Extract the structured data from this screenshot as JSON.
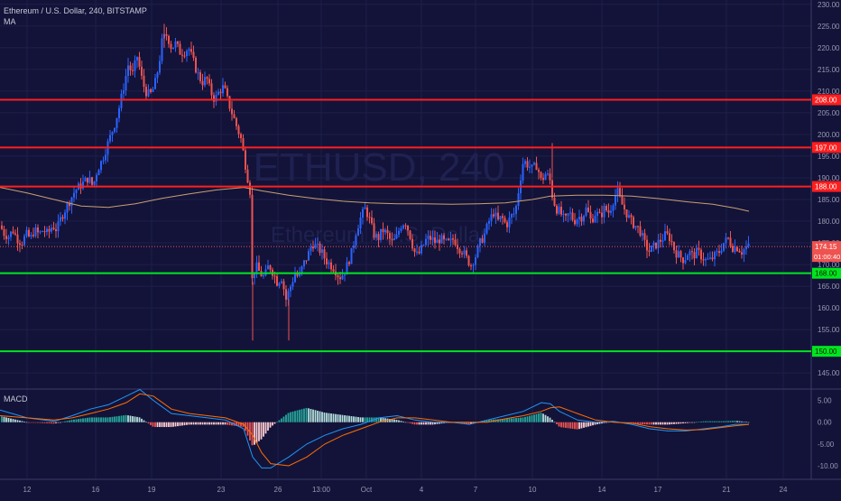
{
  "header": {
    "symbol_title": "Ethereum / U.S. Dollar, 240, BITSTAMP",
    "indicator_ma": "MA",
    "watermark_symbol": "ETHUSD, 240",
    "watermark_name": "Ethereum / U.S. Dollar"
  },
  "colors": {
    "background": "#131339",
    "up_candle": "#2962ff",
    "down_candle": "#ef5350",
    "resistance": "#ff1e1e",
    "support": "#00e61e",
    "ma_line": "#c8a070",
    "macd_line": "#2196f3",
    "signal_line": "#ff6d00",
    "hist_pos": "#26a69a",
    "hist_neg": "#ef5350"
  },
  "chart_data": [
    {
      "type": "candlestick",
      "title": "Ethereum / U.S. Dollar, 240, BITSTAMP",
      "x_tick_labels": [
        "12",
        "16",
        "19",
        "23",
        "26",
        "13:00",
        "Oct",
        "4",
        "7",
        "10",
        "14",
        "17",
        "21",
        "24"
      ],
      "y_tick_labels": [
        "145.00",
        "150.00",
        "155.00",
        "160.00",
        "165.00",
        "170.00",
        "175.00",
        "180.00",
        "185.00",
        "190.00",
        "195.00",
        "200.00",
        "205.00",
        "210.00",
        "215.00",
        "220.00",
        "225.00",
        "230.00"
      ],
      "ylim": [
        141.5,
        231
      ],
      "last_price": 174.15,
      "last_price_label": "174.15",
      "countdown_label": "01:00:40",
      "horizontal_levels": [
        {
          "value": 208.0,
          "label": "208.00",
          "kind": "resistance"
        },
        {
          "value": 197.0,
          "label": "197.00",
          "kind": "resistance"
        },
        {
          "value": 188.0,
          "label": "188.00",
          "kind": "resistance"
        },
        {
          "value": 168.0,
          "label": "168.00",
          "kind": "support"
        },
        {
          "value": 150.0,
          "label": "150.00",
          "kind": "support"
        }
      ],
      "close_path": [
        [
          0,
          179
        ],
        [
          5,
          177
        ],
        [
          10,
          176.5
        ],
        [
          14,
          178
        ],
        [
          19,
          176
        ],
        [
          24,
          175
        ],
        [
          29,
          177
        ],
        [
          34,
          176
        ],
        [
          38,
          178
        ],
        [
          43,
          177
        ],
        [
          48,
          178
        ],
        [
          53,
          177
        ],
        [
          58,
          179
        ],
        [
          63,
          178
        ],
        [
          68,
          181
        ],
        [
          73,
          183
        ],
        [
          78,
          185
        ],
        [
          83,
          187
        ],
        [
          88,
          188
        ],
        [
          93,
          189
        ],
        [
          98,
          190
        ],
        [
          103,
          188
        ],
        [
          108,
          192
        ],
        [
          113,
          194
        ],
        [
          118,
          197
        ],
        [
          123,
          200
        ],
        [
          128,
          203
        ],
        [
          133,
          207
        ],
        [
          138,
          212
        ],
        [
          142,
          216
        ],
        [
          147,
          214
        ],
        [
          152,
          218
        ],
        [
          157,
          213
        ],
        [
          161,
          210
        ],
        [
          166,
          209
        ],
        [
          171,
          211
        ],
        [
          176,
          216
        ],
        [
          180,
          222
        ],
        [
          185,
          223
        ],
        [
          190,
          220
        ],
        [
          195,
          221
        ],
        [
          199,
          219
        ],
        [
          204,
          219
        ],
        [
          209,
          220
        ],
        [
          214,
          217
        ],
        [
          219,
          214
        ],
        [
          224,
          212
        ],
        [
          229,
          213
        ],
        [
          233,
          210
        ],
        [
          238,
          208
        ],
        [
          243,
          210
        ],
        [
          248,
          211
        ],
        [
          252,
          208
        ],
        [
          257,
          205
        ],
        [
          262,
          202
        ],
        [
          267,
          199
        ],
        [
          272,
          193
        ],
        [
          277,
          187
        ],
        [
          279,
          166
        ],
        [
          283,
          170
        ],
        [
          288,
          168
        ],
        [
          293,
          167
        ],
        [
          298,
          170
        ],
        [
          303,
          168
        ],
        [
          307,
          166
        ],
        [
          312,
          167
        ],
        [
          317,
          162
        ],
        [
          322,
          165
        ],
        [
          327,
          168
        ],
        [
          331,
          167
        ],
        [
          336,
          170
        ],
        [
          341,
          172
        ],
        [
          346,
          175
        ],
        [
          351,
          174
        ],
        [
          356,
          173
        ],
        [
          361,
          171
        ],
        [
          366,
          170
        ],
        [
          371,
          169
        ],
        [
          376,
          167
        ],
        [
          381,
          168
        ],
        [
          385,
          170
        ],
        [
          390,
          173
        ],
        [
          395,
          178
        ],
        [
          400,
          181
        ],
        [
          405,
          183
        ],
        [
          410,
          180
        ],
        [
          414,
          177
        ],
        [
          419,
          176
        ],
        [
          424,
          178
        ],
        [
          429,
          177
        ],
        [
          434,
          175
        ],
        [
          439,
          176
        ],
        [
          444,
          179
        ],
        [
          449,
          180
        ],
        [
          454,
          177
        ],
        [
          459,
          173
        ],
        [
          463,
          172
        ],
        [
          468,
          174
        ],
        [
          473,
          176
        ],
        [
          478,
          176
        ],
        [
          483,
          175
        ],
        [
          488,
          176
        ],
        [
          493,
          175
        ],
        [
          498,
          175
        ],
        [
          503,
          176
        ],
        [
          508,
          174
        ],
        [
          513,
          173
        ],
        [
          518,
          171
        ],
        [
          522,
          170
        ],
        [
          527,
          172
        ],
        [
          532,
          175
        ],
        [
          537,
          177
        ],
        [
          542,
          180
        ],
        [
          547,
          182
        ],
        [
          552,
          180
        ],
        [
          556,
          181
        ],
        [
          561,
          179
        ],
        [
          566,
          181
        ],
        [
          571,
          182
        ],
        [
          576,
          189
        ],
        [
          580,
          194
        ],
        [
          585,
          193
        ],
        [
          590,
          192
        ],
        [
          595,
          193
        ],
        [
          600,
          189
        ],
        [
          604,
          191
        ],
        [
          609,
          190
        ],
        [
          612,
          186
        ],
        [
          616,
          183
        ],
        [
          621,
          182
        ],
        [
          626,
          180
        ],
        [
          631,
          182
        ],
        [
          636,
          180
        ],
        [
          641,
          181
        ],
        [
          645,
          181
        ],
        [
          650,
          183
        ],
        [
          655,
          180
        ],
        [
          660,
          182
        ],
        [
          665,
          181
        ],
        [
          670,
          183
        ],
        [
          675,
          182
        ],
        [
          680,
          185
        ],
        [
          684,
          187
        ],
        [
          689,
          184
        ],
        [
          694,
          182
        ],
        [
          699,
          180
        ],
        [
          704,
          179
        ],
        [
          709,
          178
        ],
        [
          714,
          175
        ],
        [
          719,
          173
        ],
        [
          724,
          174
        ],
        [
          729,
          175
        ],
        [
          734,
          176
        ],
        [
          738,
          177
        ],
        [
          743,
          176
        ],
        [
          748,
          173
        ],
        [
          753,
          172
        ],
        [
          758,
          171
        ],
        [
          763,
          173
        ],
        [
          768,
          172
        ],
        [
          773,
          173
        ],
        [
          777,
          172
        ],
        [
          782,
          171
        ],
        [
          787,
          171
        ],
        [
          792,
          172
        ],
        [
          797,
          173
        ],
        [
          802,
          175
        ],
        [
          807,
          176
        ],
        [
          812,
          174
        ],
        [
          817,
          174
        ],
        [
          822,
          173
        ],
        [
          827,
          174
        ],
        [
          830,
          174.15
        ]
      ],
      "ma_path": [
        [
          0,
          187.8
        ],
        [
          30,
          186.5
        ],
        [
          60,
          185
        ],
        [
          90,
          183.5
        ],
        [
          120,
          183.2
        ],
        [
          150,
          184
        ],
        [
          180,
          185.3
        ],
        [
          210,
          186.3
        ],
        [
          240,
          187.2
        ],
        [
          270,
          187.8
        ],
        [
          290,
          187
        ],
        [
          320,
          186
        ],
        [
          350,
          185.2
        ],
        [
          380,
          184.6
        ],
        [
          410,
          184.2
        ],
        [
          440,
          184
        ],
        [
          470,
          184
        ],
        [
          500,
          183.9
        ],
        [
          530,
          184
        ],
        [
          560,
          184.2
        ],
        [
          590,
          185
        ],
        [
          610,
          185.8
        ],
        [
          640,
          186
        ],
        [
          670,
          186
        ],
        [
          700,
          185.8
        ],
        [
          730,
          185.2
        ],
        [
          760,
          184.5
        ],
        [
          790,
          183.9
        ],
        [
          815,
          183
        ],
        [
          830,
          182.3
        ]
      ]
    },
    {
      "type": "line",
      "title": "MACD",
      "y_tick_labels": [
        "5.00",
        "0.00",
        "-5.00",
        "-10.00"
      ],
      "ylim": [
        -12.9,
        7.4
      ],
      "series": [
        {
          "name": "MACD",
          "values": [
            [
              0,
              2.8
            ],
            [
              30,
              1
            ],
            [
              60,
              0.2
            ],
            [
              80,
              1.5
            ],
            [
              100,
              3
            ],
            [
              120,
              4
            ],
            [
              140,
              6
            ],
            [
              155,
              7.5
            ],
            [
              170,
              5
            ],
            [
              190,
              2
            ],
            [
              210,
              1.5
            ],
            [
              230,
              1
            ],
            [
              250,
              0.5
            ],
            [
              270,
              -1.5
            ],
            [
              280,
              -8
            ],
            [
              290,
              -10.5
            ],
            [
              300,
              -10.5
            ],
            [
              320,
              -8
            ],
            [
              340,
              -5
            ],
            [
              360,
              -3
            ],
            [
              380,
              -1.5
            ],
            [
              400,
              -0.5
            ],
            [
              420,
              1
            ],
            [
              440,
              1.5
            ],
            [
              460,
              0.5
            ],
            [
              480,
              0
            ],
            [
              500,
              0
            ],
            [
              520,
              -0.5
            ],
            [
              540,
              0.5
            ],
            [
              560,
              1.5
            ],
            [
              580,
              2.5
            ],
            [
              600,
              4.5
            ],
            [
              610,
              4.2
            ],
            [
              620,
              2.5
            ],
            [
              640,
              0.5
            ],
            [
              660,
              0
            ],
            [
              680,
              0.2
            ],
            [
              700,
              -0.5
            ],
            [
              720,
              -1.5
            ],
            [
              740,
              -2
            ],
            [
              760,
              -2
            ],
            [
              780,
              -1.5
            ],
            [
              800,
              -1
            ],
            [
              815,
              -0.5
            ],
            [
              830,
              -0.5
            ]
          ]
        },
        {
          "name": "Signal",
          "values": [
            [
              0,
              1.5
            ],
            [
              30,
              1
            ],
            [
              60,
              0.5
            ],
            [
              80,
              1
            ],
            [
              100,
              2
            ],
            [
              120,
              3
            ],
            [
              140,
              4.5
            ],
            [
              155,
              6.5
            ],
            [
              170,
              6
            ],
            [
              190,
              3
            ],
            [
              210,
              2
            ],
            [
              230,
              1.5
            ],
            [
              250,
              1
            ],
            [
              270,
              -0.5
            ],
            [
              280,
              -3
            ],
            [
              290,
              -7
            ],
            [
              300,
              -9.5
            ],
            [
              320,
              -10
            ],
            [
              340,
              -8
            ],
            [
              360,
              -5
            ],
            [
              380,
              -3
            ],
            [
              400,
              -1.5
            ],
            [
              420,
              0
            ],
            [
              440,
              1
            ],
            [
              460,
              1
            ],
            [
              480,
              0.5
            ],
            [
              500,
              0
            ],
            [
              520,
              0
            ],
            [
              540,
              0
            ],
            [
              560,
              0.8
            ],
            [
              580,
              1.5
            ],
            [
              600,
              2.5
            ],
            [
              610,
              3.3
            ],
            [
              620,
              3.5
            ],
            [
              640,
              2
            ],
            [
              660,
              0.5
            ],
            [
              680,
              0
            ],
            [
              700,
              -0.2
            ],
            [
              720,
              -1
            ],
            [
              740,
              -1.5
            ],
            [
              760,
              -1.8
            ],
            [
              780,
              -1.7
            ],
            [
              800,
              -1.2
            ],
            [
              815,
              -0.8
            ],
            [
              830,
              -0.5
            ]
          ]
        }
      ]
    }
  ]
}
